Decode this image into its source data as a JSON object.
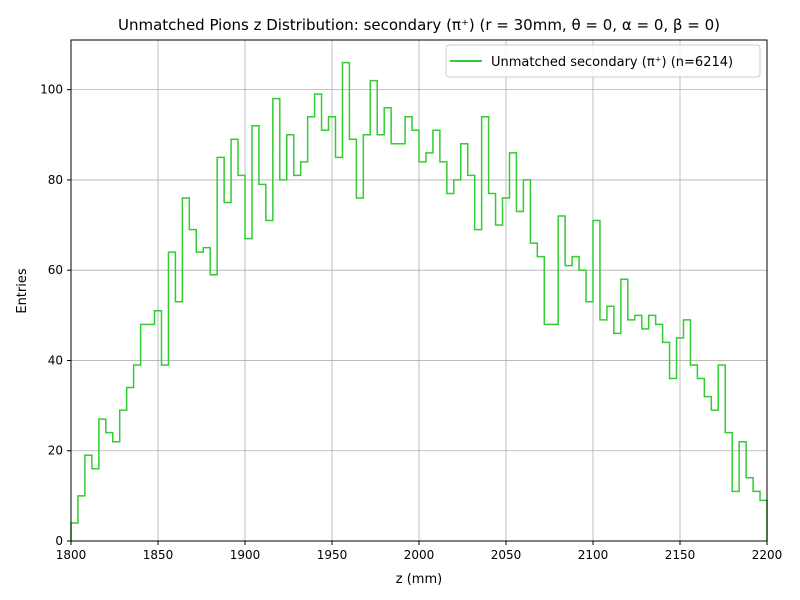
{
  "chart_data": {
    "type": "histogram",
    "title": "Unmatched Pions z Distribution: secondary (π⁺) (r = 30mm, θ = 0, α = 0, β = 0)",
    "xlabel": "z (mm)",
    "ylabel": "Entries",
    "xlim": [
      1800,
      2200
    ],
    "ylim": [
      0,
      111
    ],
    "grid": true,
    "legend_position": "top-right",
    "x_ticks": [
      "1800",
      "1850",
      "1900",
      "1950",
      "2000",
      "2050",
      "2100",
      "2150",
      "2200"
    ],
    "y_ticks": [
      "0",
      "20",
      "40",
      "60",
      "80",
      "100"
    ],
    "bin_width": 4,
    "series": [
      {
        "name": "Unmatched secondary (π⁺) (n=6214)",
        "color": "#33cc33",
        "bin_start": [
          1800,
          1804,
          1808,
          1812,
          1816,
          1820,
          1824,
          1828,
          1832,
          1836,
          1840,
          1844,
          1848,
          1852,
          1856,
          1860,
          1864,
          1868,
          1872,
          1876,
          1880,
          1884,
          1888,
          1892,
          1896,
          1900,
          1904,
          1908,
          1912,
          1916,
          1920,
          1924,
          1928,
          1932,
          1936,
          1940,
          1944,
          1948,
          1952,
          1956,
          1960,
          1964,
          1968,
          1972,
          1976,
          1980,
          1984,
          1988,
          1992,
          1996,
          2000,
          2004,
          2008,
          2012,
          2016,
          2020,
          2024,
          2028,
          2032,
          2036,
          2040,
          2044,
          2048,
          2052,
          2056,
          2060,
          2064,
          2068,
          2072,
          2076,
          2080,
          2084,
          2088,
          2092,
          2096,
          2100,
          2104,
          2108,
          2112,
          2116,
          2120,
          2124,
          2128,
          2132,
          2136,
          2140,
          2144,
          2148,
          2152,
          2156,
          2160,
          2164,
          2168,
          2172,
          2176,
          2180,
          2184,
          2188,
          2192,
          2196
        ],
        "values": [
          4,
          10,
          19,
          16,
          27,
          24,
          22,
          29,
          34,
          39,
          48,
          48,
          51,
          39,
          64,
          53,
          76,
          69,
          64,
          65,
          59,
          85,
          75,
          89,
          81,
          67,
          92,
          79,
          71,
          98,
          80,
          90,
          81,
          84,
          94,
          99,
          91,
          94,
          85,
          106,
          89,
          76,
          90,
          102,
          90,
          96,
          88,
          88,
          94,
          91,
          84,
          86,
          91,
          84,
          77,
          80,
          88,
          81,
          69,
          94,
          77,
          70,
          76,
          86,
          73,
          80,
          66,
          63,
          48,
          48,
          72,
          61,
          63,
          60,
          53,
          71,
          49,
          52,
          46,
          58,
          49,
          50,
          47,
          50,
          48,
          44,
          36,
          45,
          49,
          39,
          36,
          32,
          29,
          39,
          24,
          11,
          22,
          14,
          11,
          9
        ]
      }
    ]
  }
}
